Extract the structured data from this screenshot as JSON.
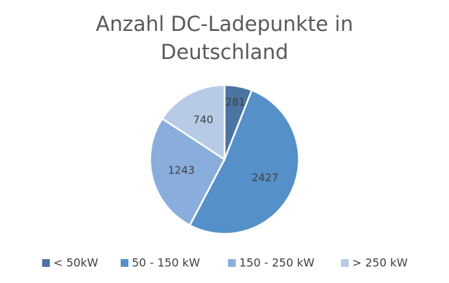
{
  "chart_data": {
    "type": "pie",
    "title": "Anzahl DC-Ladepunkte in Deutschland",
    "categories": [
      "< 50kW",
      "50 - 150 kW",
      "150 - 250 kW",
      "> 250 kW"
    ],
    "values": [
      281,
      2427,
      1243,
      740
    ],
    "colors": [
      "#4c74a2",
      "#5590c9",
      "#89aedb",
      "#b7cbe7"
    ],
    "legend": "bottom"
  }
}
